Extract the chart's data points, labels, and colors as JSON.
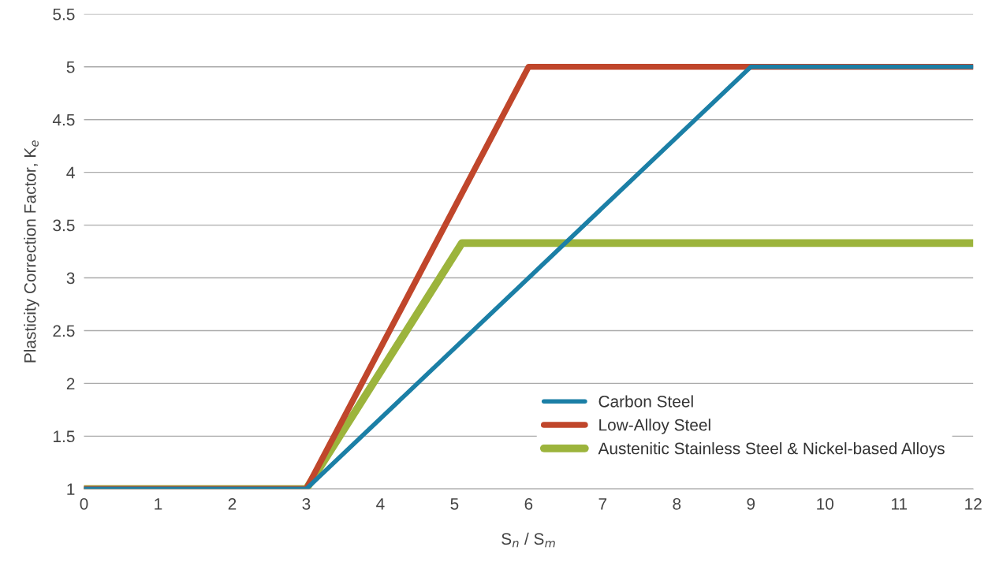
{
  "chart_data": {
    "type": "line",
    "xlabel": "S$_{n}$ / S$_{m}$",
    "ylabel": "Plasticity Correction Factor, K$_{e}$",
    "xlim": [
      0,
      12
    ],
    "xticks": [
      0,
      1,
      2,
      3,
      4,
      5,
      6,
      7,
      8,
      9,
      10,
      11,
      12
    ],
    "ylim": [
      1,
      5.5
    ],
    "yticks": [
      1,
      1.5,
      2,
      2.5,
      3,
      3.5,
      4,
      4.5,
      5,
      5.5
    ],
    "grid": "y",
    "legend": "bottom right",
    "marker": "none",
    "line_style": "solid",
    "series": [
      {
        "name": "Carbon Steel",
        "color": "#1b7fa6",
        "x": [
          0,
          3,
          9,
          12
        ],
        "values": [
          1,
          1,
          5,
          5
        ]
      },
      {
        "name": "Low-Alloy Steel",
        "color": "#c0462b",
        "x": [
          0,
          3,
          6,
          12
        ],
        "values": [
          1,
          1,
          5,
          5
        ]
      },
      {
        "name": "Austenitic Stainless Steel & Nickel-based Alloys",
        "color": "#9cb43c",
        "x": [
          0,
          3,
          5.1,
          12
        ],
        "values": [
          1,
          1,
          3.33,
          3.33
        ]
      }
    ]
  }
}
